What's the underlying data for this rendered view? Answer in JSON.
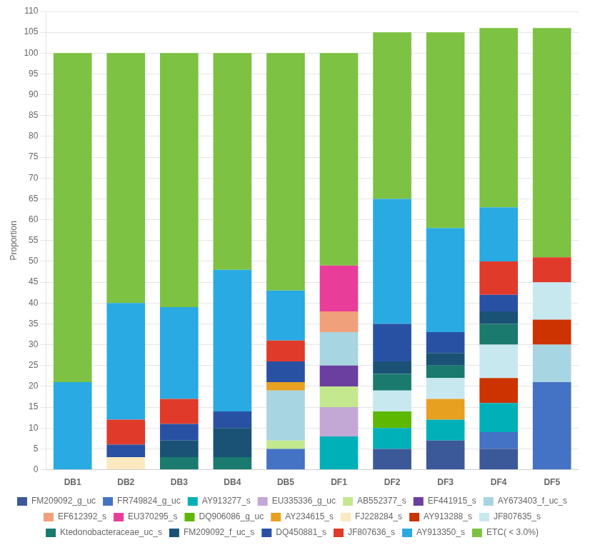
{
  "chart_data": {
    "type": "bar",
    "stacked": true,
    "grid": true,
    "legend": "bottom",
    "ylabel": "Proportion",
    "categories": [
      "DB1",
      "DB2",
      "DB3",
      "DB4",
      "DB5",
      "DF1",
      "DF2",
      "DF3",
      "DF4",
      "DF5"
    ],
    "ylim": [
      0,
      110
    ],
    "yticks": [
      0,
      5,
      10,
      15,
      20,
      25,
      30,
      35,
      40,
      45,
      50,
      55,
      60,
      65,
      70,
      75,
      80,
      85,
      90,
      95,
      100,
      105,
      110
    ],
    "series": [
      {
        "name": "FM209092_g_uc",
        "color": "#3b5998",
        "values": [
          0,
          0,
          0,
          0,
          0,
          0,
          5,
          7,
          5,
          0
        ]
      },
      {
        "name": "FR749824_g_uc",
        "color": "#4472c4",
        "values": [
          0,
          0,
          0,
          0,
          5,
          0,
          0,
          0,
          4,
          21
        ]
      },
      {
        "name": "AY913277_s",
        "color": "#00b0b9",
        "values": [
          0,
          0,
          0,
          0,
          0,
          8,
          5,
          5,
          7,
          0
        ]
      },
      {
        "name": "EU335336_g_uc",
        "color": "#c3a8d5",
        "values": [
          0,
          0,
          0,
          0,
          0,
          7,
          0,
          0,
          0,
          0
        ]
      },
      {
        "name": "AB552377_s",
        "color": "#c3e88d",
        "values": [
          0,
          0,
          0,
          0,
          2,
          5,
          0,
          0,
          0,
          0
        ]
      },
      {
        "name": "EF441915_s",
        "color": "#6b3fa0",
        "values": [
          0,
          0,
          0,
          0,
          0,
          5,
          0,
          0,
          0,
          0
        ]
      },
      {
        "name": "AY673403_f_uc_s",
        "color": "#a8d5e2",
        "values": [
          0,
          0,
          0,
          0,
          12,
          8,
          0,
          0,
          0,
          9
        ]
      },
      {
        "name": "EF612392_s",
        "color": "#f0a07a",
        "values": [
          0,
          0,
          0,
          0,
          0,
          5,
          0,
          0,
          0,
          0
        ]
      },
      {
        "name": "EU370295_s",
        "color": "#e83e99",
        "values": [
          0,
          0,
          0,
          0,
          0,
          11,
          0,
          0,
          0,
          0
        ]
      },
      {
        "name": "DQ906086_g_uc",
        "color": "#5cb800",
        "values": [
          0,
          0,
          0,
          0,
          0,
          0,
          4,
          0,
          0,
          0
        ]
      },
      {
        "name": "AY234615_s",
        "color": "#e8a020",
        "values": [
          0,
          0,
          0,
          0,
          2,
          0,
          0,
          5,
          0,
          0
        ]
      },
      {
        "name": "FJ228284_s",
        "color": "#fce9bf",
        "values": [
          0,
          3,
          0,
          0,
          0,
          0,
          0,
          0,
          0,
          0
        ]
      },
      {
        "name": "AY913288_s",
        "color": "#cc3300",
        "values": [
          0,
          0,
          0,
          0,
          0,
          0,
          0,
          0,
          6,
          6
        ]
      },
      {
        "name": "JF807635_s",
        "color": "#c8e8f0",
        "values": [
          0,
          0,
          0,
          0,
          0,
          0,
          5,
          5,
          8,
          9
        ]
      },
      {
        "name": "Ktedonobacteraceae_uc_s",
        "color": "#1a7a6e",
        "values": [
          0,
          0,
          3,
          3,
          0,
          0,
          4,
          3,
          5,
          0
        ]
      },
      {
        "name": "FM209092_f_uc_s",
        "color": "#1a5276",
        "values": [
          0,
          0,
          4,
          7,
          0,
          0,
          3,
          3,
          3,
          0
        ]
      },
      {
        "name": "DQ450881_s",
        "color": "#2951a3",
        "values": [
          0,
          3,
          4,
          4,
          5,
          0,
          9,
          5,
          4,
          0
        ]
      },
      {
        "name": "JF807636_s",
        "color": "#e03a2a",
        "values": [
          0,
          6,
          6,
          0,
          5,
          0,
          0,
          0,
          8,
          6
        ]
      },
      {
        "name": "AY913350_s",
        "color": "#29aae2",
        "values": [
          21,
          28,
          22,
          34,
          12,
          0,
          30,
          25,
          13,
          0
        ]
      },
      {
        "name": "ETC( < 3.0%)",
        "color": "#7dc242",
        "values": [
          79,
          60,
          61,
          52,
          57,
          51,
          40,
          47,
          43,
          55
        ]
      }
    ]
  }
}
